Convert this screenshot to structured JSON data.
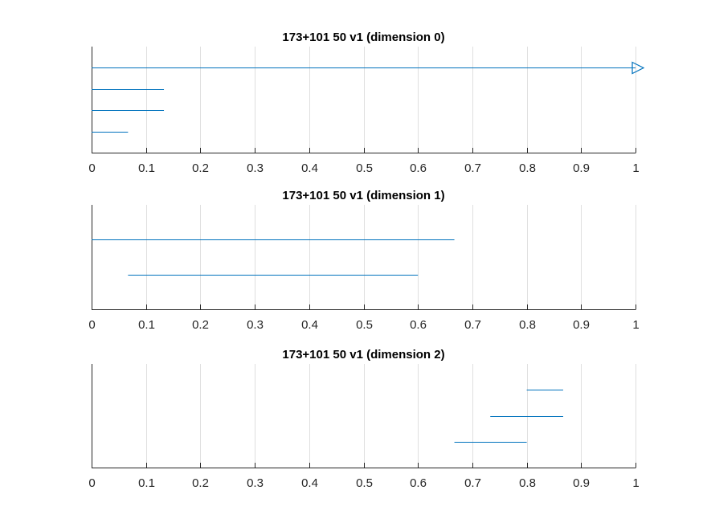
{
  "chart_data": [
    {
      "type": "line",
      "title": "173+101 50 v1 (dimension 0)",
      "xlim": [
        0,
        1
      ],
      "xticks": [
        "0",
        "0.1",
        "0.2",
        "0.3",
        "0.4",
        "0.5",
        "0.6",
        "0.7",
        "0.8",
        "0.9",
        "1"
      ],
      "grid": true,
      "color": "#0072BD",
      "bars": [
        {
          "start": 0,
          "end": 1,
          "infinite": true
        },
        {
          "start": 0,
          "end": 0.133
        },
        {
          "start": 0,
          "end": 0.133
        },
        {
          "start": 0,
          "end": 0.067
        }
      ]
    },
    {
      "type": "line",
      "title": "173+101 50 v1 (dimension 1)",
      "xlim": [
        0,
        1
      ],
      "xticks": [
        "0",
        "0.1",
        "0.2",
        "0.3",
        "0.4",
        "0.5",
        "0.6",
        "0.7",
        "0.8",
        "0.9",
        "1"
      ],
      "grid": true,
      "color": "#0072BD",
      "bars": [
        {
          "start": 0,
          "end": 0.667
        },
        {
          "start": 0.067,
          "end": 0.6
        }
      ]
    },
    {
      "type": "line",
      "title": "173+101 50 v1 (dimension 2)",
      "xlim": [
        0,
        1
      ],
      "xticks": [
        "0",
        "0.1",
        "0.2",
        "0.3",
        "0.4",
        "0.5",
        "0.6",
        "0.7",
        "0.8",
        "0.9",
        "1"
      ],
      "grid": true,
      "color": "#0072BD",
      "bars": [
        {
          "start": 0.8,
          "end": 0.867
        },
        {
          "start": 0.733,
          "end": 0.867
        },
        {
          "start": 0.667,
          "end": 0.8
        }
      ]
    }
  ]
}
